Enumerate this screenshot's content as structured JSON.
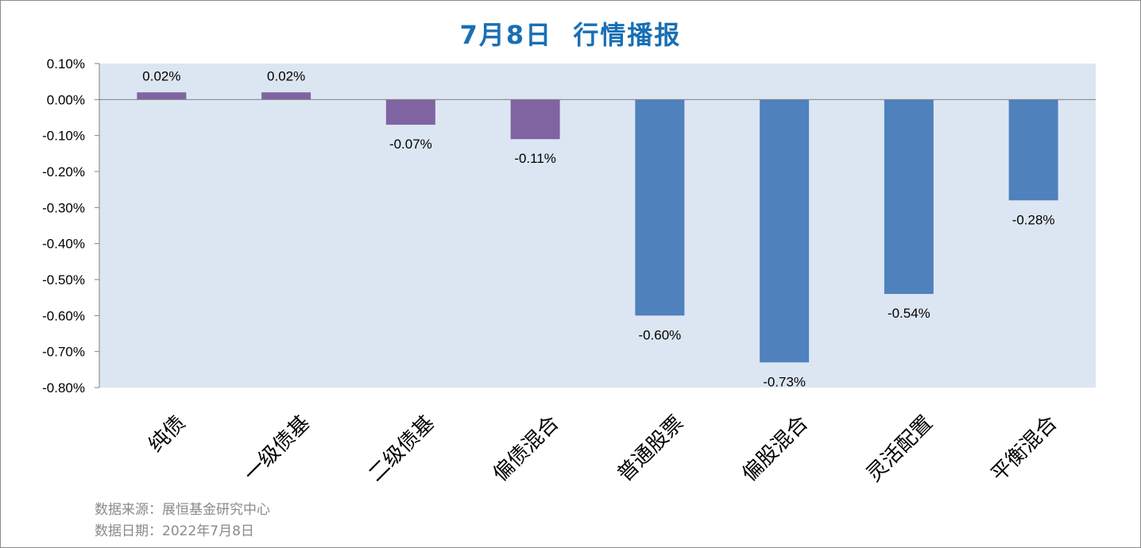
{
  "chart_data": {
    "type": "bar",
    "title": "7月8日  行情播报",
    "categories": [
      "纯债",
      "一级债基",
      "二级债基",
      "偏债混合",
      "普通股票",
      "偏股混合",
      "灵活配置",
      "平衡混合"
    ],
    "values": [
      0.02,
      0.02,
      -0.07,
      -0.11,
      -0.6,
      -0.73,
      -0.54,
      -0.28
    ],
    "data_labels": [
      "0.02%",
      "0.02%",
      "-0.07%",
      "-0.11%",
      "-0.60%",
      "-0.73%",
      "-0.54%",
      "-0.28%"
    ],
    "bar_colors": [
      "#8064a2",
      "#8064a2",
      "#8064a2",
      "#8064a2",
      "#4f81bd",
      "#4f81bd",
      "#4f81bd",
      "#4f81bd"
    ],
    "y_ticks": [
      0.1,
      0.0,
      -0.1,
      -0.2,
      -0.3,
      -0.4,
      -0.5,
      -0.6,
      -0.7,
      -0.8
    ],
    "y_tick_labels": [
      "0.10%",
      "0.00%",
      "-0.10%",
      "-0.20%",
      "-0.30%",
      "-0.40%",
      "-0.50%",
      "-0.60%",
      "-0.70%",
      "-0.80%"
    ],
    "ylim": [
      -0.8,
      0.1
    ],
    "unit": "%",
    "grid": false,
    "legend": "none",
    "plot_background": "#dce6f2"
  },
  "footer": {
    "source": "数据来源：展恒基金研究中心",
    "date": "数据日期：2022年7月8日"
  }
}
